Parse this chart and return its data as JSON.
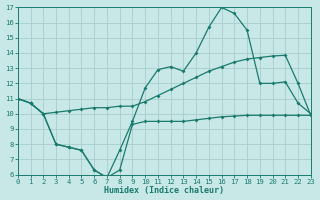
{
  "xlabel": "Humidex (Indice chaleur)",
  "bg_color": "#c8e8e8",
  "grid_color": "#a8cccc",
  "line_color": "#1a7a6e",
  "x_values": [
    0,
    1,
    2,
    3,
    4,
    5,
    6,
    7,
    8,
    9,
    10,
    11,
    12,
    13,
    14,
    15,
    16,
    17,
    18,
    19,
    20,
    21,
    22,
    23
  ],
  "line1": [
    11,
    10.7,
    10.0,
    10.1,
    10.2,
    10.3,
    10.4,
    10.4,
    10.5,
    10.5,
    10.8,
    11.2,
    11.6,
    12.0,
    12.4,
    12.8,
    13.1,
    13.4,
    13.6,
    13.7,
    13.8,
    13.85,
    12.0,
    9.9
  ],
  "line2": [
    11,
    10.7,
    10.0,
    8.0,
    7.8,
    7.6,
    6.3,
    5.8,
    7.6,
    9.5,
    11.7,
    12.9,
    13.1,
    12.8,
    14.0,
    15.7,
    17.0,
    16.6,
    15.5,
    12.0,
    12.0,
    12.1,
    10.7,
    10.0
  ],
  "line3": [
    11,
    10.7,
    10.0,
    8.0,
    7.8,
    7.6,
    6.3,
    5.8,
    6.3,
    9.3,
    9.5,
    9.5,
    9.5,
    9.5,
    9.6,
    9.7,
    9.8,
    9.85,
    9.9,
    9.9,
    9.9,
    9.9,
    9.9,
    9.9
  ],
  "ylim": [
    6,
    17
  ],
  "xlim": [
    0,
    23
  ],
  "yticks": [
    6,
    7,
    8,
    9,
    10,
    11,
    12,
    13,
    14,
    15,
    16,
    17
  ],
  "xticks": [
    0,
    1,
    2,
    3,
    4,
    5,
    6,
    7,
    8,
    9,
    10,
    11,
    12,
    13,
    14,
    15,
    16,
    17,
    18,
    19,
    20,
    21,
    22,
    23
  ],
  "tick_fontsize": 5.2,
  "xlabel_fontsize": 6.0
}
